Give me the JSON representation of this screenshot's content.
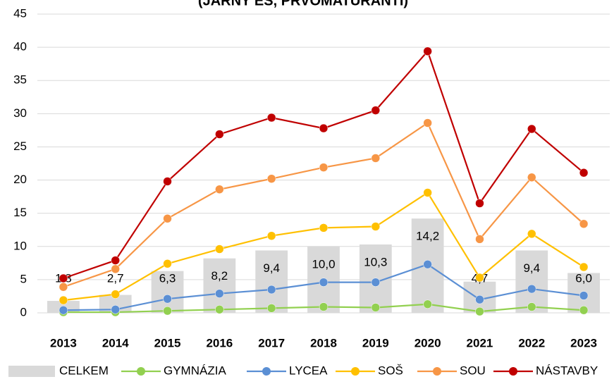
{
  "chart_data": {
    "type": "bar_line",
    "title": "(JARNÝ ES, PRVOMATURANTI)",
    "categories": [
      "2013",
      "2014",
      "2015",
      "2016",
      "2017",
      "2018",
      "2019",
      "2020",
      "2021",
      "2022",
      "2023"
    ],
    "ylim": [
      0,
      45
    ],
    "yticks": [
      0,
      5,
      10,
      15,
      20,
      25,
      30,
      35,
      40,
      45
    ],
    "grid": true,
    "legend": "bottom",
    "series": [
      {
        "name": "CELKEM",
        "type": "bar",
        "color": "#d9d9d9",
        "values": [
          1.8,
          2.7,
          6.3,
          8.2,
          9.4,
          10.0,
          10.3,
          14.2,
          4.7,
          9.4,
          6.0
        ],
        "value_labels": [
          "1,8",
          "2,7",
          "6,3",
          "8,2",
          "9,4",
          "10,0",
          "10,3",
          "14,2",
          "4,7",
          "9,4",
          "6,0"
        ]
      },
      {
        "name": "GYMNÁZIA",
        "type": "line",
        "color": "#92d050",
        "values": [
          0.1,
          0.1,
          0.3,
          0.5,
          0.7,
          0.9,
          0.8,
          1.3,
          0.2,
          0.9,
          0.4
        ]
      },
      {
        "name": "LYCEA",
        "type": "line",
        "color": "#5b8fd4",
        "values": [
          0.4,
          0.5,
          2.1,
          2.9,
          3.5,
          4.6,
          4.6,
          7.3,
          2.0,
          3.6,
          2.6
        ]
      },
      {
        "name": "SOŠ",
        "type": "line",
        "color": "#ffc000",
        "values": [
          1.9,
          2.8,
          7.4,
          9.6,
          11.6,
          12.8,
          13.0,
          18.1,
          5.3,
          11.9,
          6.9
        ]
      },
      {
        "name": "SOU",
        "type": "line",
        "color": "#f79646",
        "values": [
          3.9,
          6.6,
          14.2,
          18.6,
          20.2,
          21.9,
          23.3,
          28.6,
          11.1,
          20.4,
          13.4
        ]
      },
      {
        "name": "NÁSTAVBY",
        "type": "line",
        "color": "#c00000",
        "values": [
          5.2,
          7.9,
          19.8,
          26.9,
          29.4,
          27.8,
          30.5,
          39.4,
          16.5,
          27.7,
          21.1
        ]
      }
    ]
  }
}
